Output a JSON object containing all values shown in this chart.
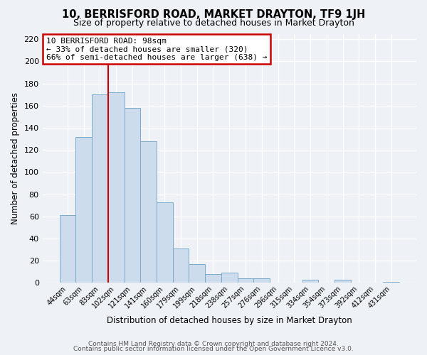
{
  "title": "10, BERRISFORD ROAD, MARKET DRAYTON, TF9 1JH",
  "subtitle": "Size of property relative to detached houses in Market Drayton",
  "xlabel": "Distribution of detached houses by size in Market Drayton",
  "ylabel": "Number of detached properties",
  "bar_labels": [
    "44sqm",
    "63sqm",
    "83sqm",
    "102sqm",
    "121sqm",
    "141sqm",
    "160sqm",
    "179sqm",
    "199sqm",
    "218sqm",
    "238sqm",
    "257sqm",
    "276sqm",
    "296sqm",
    "315sqm",
    "334sqm",
    "354sqm",
    "373sqm",
    "392sqm",
    "412sqm",
    "431sqm"
  ],
  "bar_values": [
    61,
    132,
    170,
    172,
    158,
    128,
    73,
    31,
    17,
    8,
    9,
    4,
    4,
    0,
    0,
    3,
    0,
    3,
    0,
    0,
    1
  ],
  "bar_color": "#ccdcec",
  "bar_edge_color": "#7aaac8",
  "vline_x": 2.5,
  "vline_color": "#cc0000",
  "annotation_title": "10 BERRISFORD ROAD: 98sqm",
  "annotation_line1": "← 33% of detached houses are smaller (320)",
  "annotation_line2": "66% of semi-detached houses are larger (638) →",
  "annotation_box_facecolor": "#ffffff",
  "annotation_box_edgecolor": "#cc0000",
  "ylim": [
    0,
    225
  ],
  "yticks": [
    0,
    20,
    40,
    60,
    80,
    100,
    120,
    140,
    160,
    180,
    200,
    220
  ],
  "footer1": "Contains HM Land Registry data © Crown copyright and database right 2024.",
  "footer2": "Contains public sector information licensed under the Open Government Licence v3.0.",
  "bg_color": "#eef2f7",
  "grid_color": "#ffffff",
  "title_fontsize": 10.5,
  "subtitle_fontsize": 9
}
